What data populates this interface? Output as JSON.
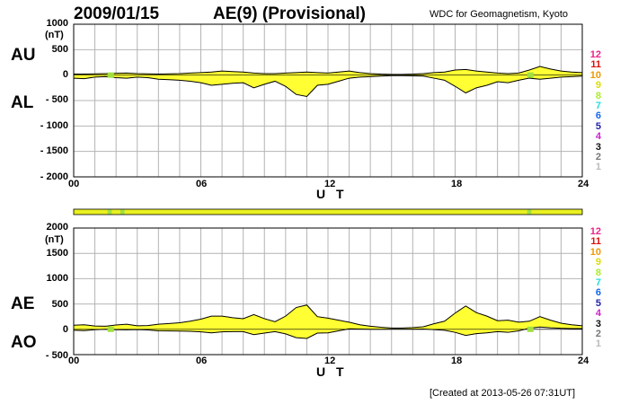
{
  "header": {
    "date": "2009/01/15",
    "title": "AE(9)  (Provisional)",
    "source": "WDC for Geomagnetism, Kyoto"
  },
  "footer": {
    "created": "[Created at 2013-05-26 07:31UT]"
  },
  "colors": {
    "fill": "#ffff33",
    "grid": "#b4b4b4",
    "quality_bar": "#e8f020",
    "quality_marker": "#a0e040"
  },
  "legend_counts": [
    {
      "label": "12",
      "color": "#ee2288"
    },
    {
      "label": "11",
      "color": "#dd1111"
    },
    {
      "label": "10",
      "color": "#ee9900"
    },
    {
      "label": "9",
      "color": "#dddd00"
    },
    {
      "label": "8",
      "color": "#aaee22"
    },
    {
      "label": "7",
      "color": "#22dddd"
    },
    {
      "label": "6",
      "color": "#1166ee"
    },
    {
      "label": "5",
      "color": "#2222aa"
    },
    {
      "label": "4",
      "color": "#cc22cc"
    },
    {
      "label": "3",
      "color": "#111111"
    },
    {
      "label": "2",
      "color": "#777777"
    },
    {
      "label": "1",
      "color": "#bbbbbb"
    }
  ],
  "chart_data": [
    {
      "type": "area",
      "labels": [
        "AU",
        "AL"
      ],
      "unit": "(nT)",
      "xlabel": "U T",
      "x_ticks": [
        "00",
        "06",
        "12",
        "18",
        "24"
      ],
      "y_ticks": [
        "1000",
        "500",
        "0",
        "- 500",
        "- 1000",
        "- 1500",
        "- 2000"
      ],
      "xlim": [
        0,
        24
      ],
      "ylim": [
        -2000,
        1000
      ],
      "grid": true,
      "x": [
        0,
        0.5,
        1,
        1.5,
        2,
        2.5,
        3,
        3.5,
        4,
        4.5,
        5,
        5.5,
        6,
        6.5,
        7,
        7.5,
        8,
        8.5,
        9,
        9.5,
        10,
        10.5,
        11,
        11.5,
        12,
        12.5,
        13,
        13.5,
        14,
        14.5,
        15,
        15.5,
        16,
        16.5,
        17,
        17.5,
        18,
        18.5,
        19,
        19.5,
        20,
        20.5,
        21,
        21.5,
        22,
        22.5,
        23,
        23.5,
        24
      ],
      "series": [
        {
          "name": "AU",
          "values": [
            20,
            20,
            25,
            30,
            35,
            40,
            30,
            25,
            20,
            25,
            30,
            40,
            50,
            60,
            80,
            70,
            60,
            40,
            30,
            30,
            40,
            50,
            60,
            50,
            40,
            60,
            80,
            50,
            30,
            20,
            15,
            15,
            20,
            30,
            50,
            60,
            100,
            110,
            80,
            60,
            40,
            30,
            40,
            100,
            170,
            120,
            80,
            60,
            50
          ]
        },
        {
          "name": "AL",
          "values": [
            -60,
            -70,
            -40,
            -30,
            -50,
            -60,
            -40,
            -50,
            -80,
            -90,
            -100,
            -120,
            -150,
            -200,
            -180,
            -160,
            -150,
            -250,
            -180,
            -120,
            -220,
            -380,
            -420,
            -200,
            -180,
            -120,
            -60,
            -40,
            -30,
            -20,
            -10,
            -10,
            -15,
            -20,
            -60,
            -100,
            -220,
            -350,
            -250,
            -200,
            -130,
            -150,
            -100,
            -60,
            -80,
            -60,
            -40,
            -30,
            -20
          ]
        }
      ]
    },
    {
      "type": "area",
      "labels": [
        "AE",
        "AO"
      ],
      "unit": "(nT)",
      "xlabel": "U T",
      "x_ticks": [
        "00",
        "06",
        "12",
        "18",
        "24"
      ],
      "y_ticks": [
        "2000",
        "1500",
        "1000",
        "500",
        "0",
        "- 500"
      ],
      "xlim": [
        0,
        24
      ],
      "ylim": [
        -500,
        2000
      ],
      "grid": true,
      "x": [
        0,
        0.5,
        1,
        1.5,
        2,
        2.5,
        3,
        3.5,
        4,
        4.5,
        5,
        5.5,
        6,
        6.5,
        7,
        7.5,
        8,
        8.5,
        9,
        9.5,
        10,
        10.5,
        11,
        11.5,
        12,
        12.5,
        13,
        13.5,
        14,
        14.5,
        15,
        15.5,
        16,
        16.5,
        17,
        17.5,
        18,
        18.5,
        19,
        19.5,
        20,
        20.5,
        21,
        21.5,
        22,
        22.5,
        23,
        23.5,
        24
      ],
      "series": [
        {
          "name": "AE",
          "values": [
            80,
            90,
            65,
            60,
            85,
            100,
            70,
            75,
            100,
            115,
            130,
            160,
            200,
            260,
            260,
            230,
            210,
            290,
            210,
            150,
            260,
            430,
            480,
            250,
            220,
            180,
            140,
            90,
            60,
            40,
            25,
            25,
            35,
            50,
            110,
            160,
            320,
            460,
            330,
            260,
            170,
            180,
            140,
            160,
            250,
            180,
            120,
            90,
            70
          ]
        },
        {
          "name": "AO",
          "values": [
            -20,
            -25,
            -8,
            0,
            -8,
            -10,
            -5,
            -12,
            -30,
            -32,
            -35,
            -40,
            -50,
            -70,
            -50,
            -45,
            -45,
            -105,
            -75,
            -45,
            -90,
            -165,
            -180,
            -75,
            -70,
            -30,
            10,
            5,
            0,
            0,
            2,
            2,
            2,
            5,
            -5,
            -20,
            -60,
            -120,
            -85,
            -70,
            -45,
            -60,
            -30,
            20,
            45,
            30,
            20,
            15,
            15
          ]
        }
      ]
    }
  ]
}
